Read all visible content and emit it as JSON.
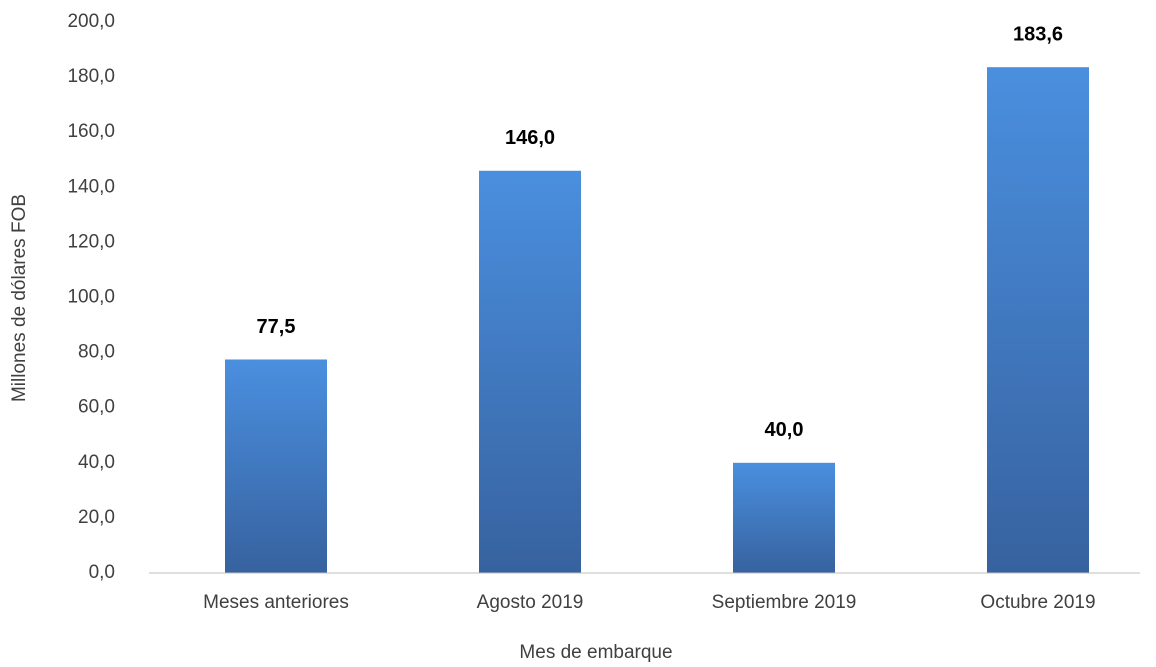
{
  "chart_data": {
    "type": "bar",
    "x_label": "Mes de embarque",
    "y_label": "Millones de dólares FOB",
    "categories": [
      "Meses anteriores",
      "Agosto 2019",
      "Septiembre 2019",
      "Octubre 2019"
    ],
    "values": [
      77.5,
      146.0,
      40.0,
      183.6
    ],
    "value_labels": [
      "77,5",
      "146,0",
      "40,0",
      "183,6"
    ],
    "color": "#4a8fdf",
    "ylim": [
      0,
      200
    ],
    "yticks": [
      {
        "value": 0,
        "label": "0,0"
      },
      {
        "value": 20,
        "label": "20,0"
      },
      {
        "value": 40,
        "label": "40,0"
      },
      {
        "value": 60,
        "label": "60,0"
      },
      {
        "value": 80,
        "label": "80,0"
      },
      {
        "value": 100,
        "label": "100,0"
      },
      {
        "value": 120,
        "label": "120,0"
      },
      {
        "value": 140,
        "label": "140,0"
      },
      {
        "value": 160,
        "label": "160,0"
      },
      {
        "value": 180,
        "label": "180,0"
      },
      {
        "value": 200,
        "label": "200,0"
      }
    ],
    "grid": false
  }
}
